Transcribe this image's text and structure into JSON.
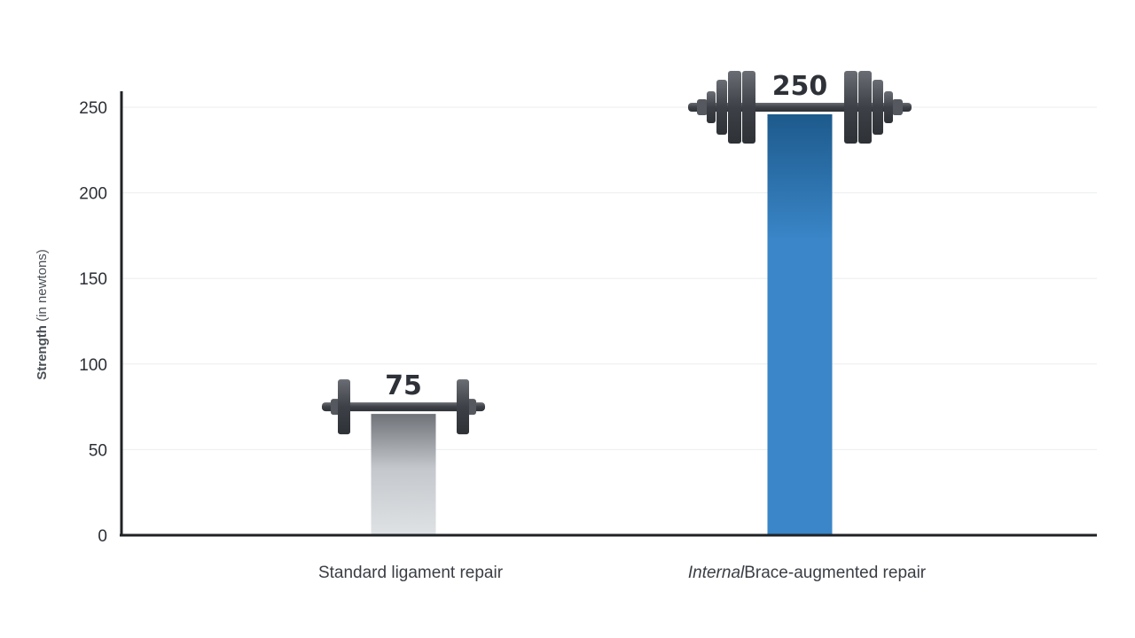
{
  "chart_data": {
    "type": "bar",
    "categories": [
      {
        "prefix": "",
        "label": "Standard ligament repair"
      },
      {
        "prefix": "Internal",
        "label": "Brace-augmented repair"
      }
    ],
    "values": [
      75,
      250
    ],
    "value_labels": [
      "75",
      "250"
    ],
    "ylabel": {
      "main": "Strength",
      "unit": " (in newtons)"
    },
    "yticks": [
      0,
      50,
      100,
      150,
      200,
      250
    ],
    "ylim": [
      0,
      250
    ],
    "grid": true,
    "bar_colors": [
      "#d6dadd",
      "#3a86c8"
    ],
    "bar_style": "barbell",
    "barbell_plates": [
      1,
      3
    ]
  }
}
